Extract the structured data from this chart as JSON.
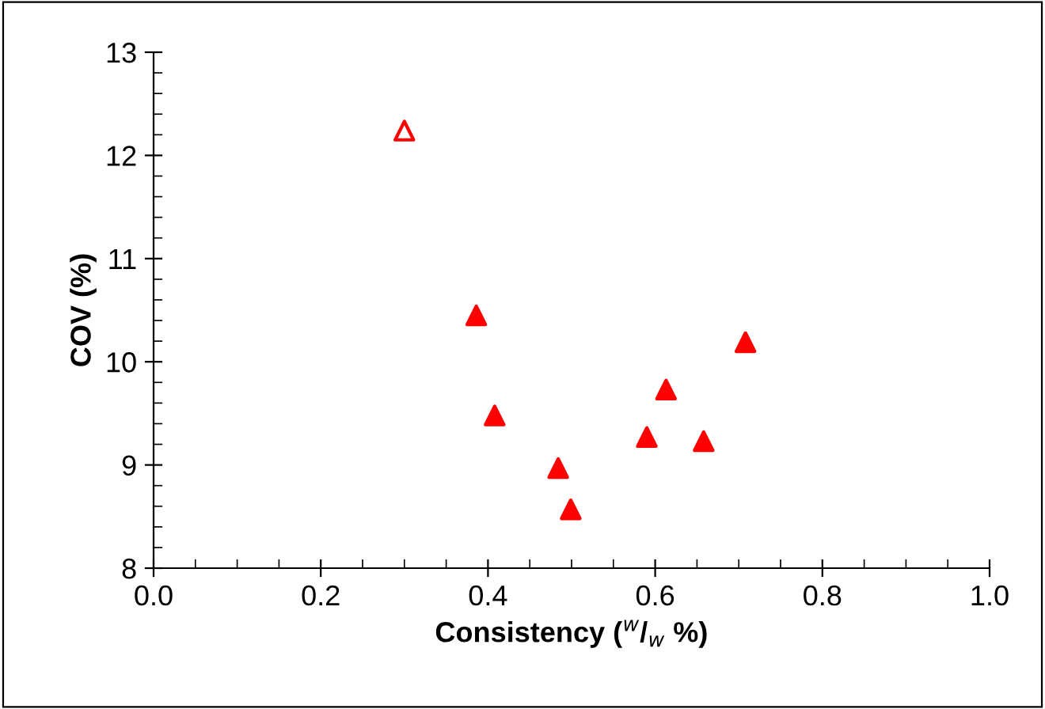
{
  "chart_data": {
    "type": "scatter",
    "xlabel": "Consistency ($^{w}$/$_{w}$ %)",
    "ylabel": "COV (%)",
    "xlim": [
      0,
      1
    ],
    "ylim": [
      8,
      13
    ],
    "xticks": [
      {
        "value": 0,
        "label": "0.0"
      },
      {
        "value": 0.2,
        "label": "0.2"
      },
      {
        "value": 0.4,
        "label": "0.4"
      },
      {
        "value": 0.6,
        "label": "0.6"
      },
      {
        "value": 0.8,
        "label": "0.8"
      },
      {
        "value": 1,
        "label": "1.0"
      }
    ],
    "yticks": [
      8,
      9,
      10,
      11,
      12,
      13
    ],
    "grid": false,
    "legend": false,
    "marker": "triangle",
    "series": [
      {
        "color": "#ff0000",
        "colors": [
          "#ffffff"
        ],
        "x": [
          0.3
        ],
        "values": [
          12.24
        ]
      },
      {
        "color": "#ff0000",
        "colors": [
          "#ff0000",
          "#ff0000",
          "#ff0000",
          "#ff0000",
          "#ff0000",
          "#ff0000",
          "#ff0000",
          "#ff0000"
        ],
        "x": [
          0.386,
          0.408,
          0.484,
          0.499,
          0.59,
          0.613,
          0.658,
          0.708
        ],
        "values": [
          10.45,
          9.48,
          8.97,
          8.57,
          9.27,
          9.73,
          9.23,
          10.19
        ]
      }
    ]
  }
}
